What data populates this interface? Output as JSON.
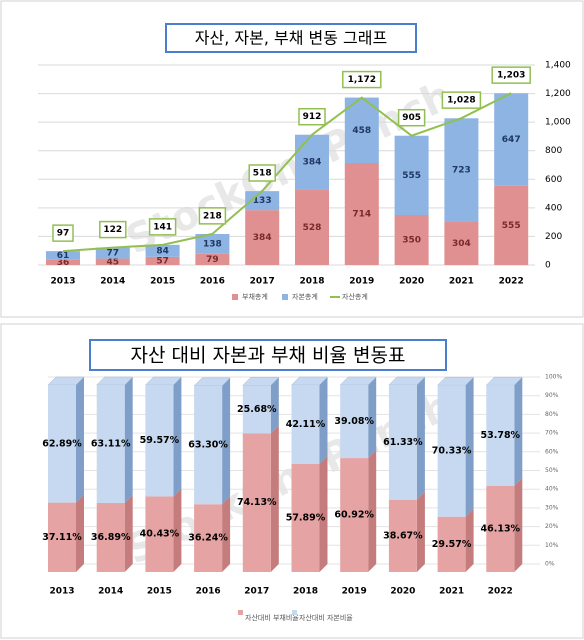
{
  "chart_data": [
    {
      "type": "combo",
      "title": "자산, 자본, 부채 변동 그래프",
      "watermark": "StockOnePunch",
      "categories": [
        "2013",
        "2014",
        "2015",
        "2016",
        "2017",
        "2018",
        "2019",
        "2020",
        "2021",
        "2022"
      ],
      "series": [
        {
          "name": "부채총계",
          "type": "bar",
          "color": "#e09090",
          "values": [
            36,
            45,
            57,
            79,
            384,
            528,
            714,
            350,
            304,
            555
          ]
        },
        {
          "name": "자본총계",
          "type": "bar",
          "color": "#8db4e2",
          "values": [
            61,
            77,
            84,
            138,
            133,
            384,
            458,
            555,
            723,
            647
          ]
        },
        {
          "name": "자산총계",
          "type": "line",
          "color": "#92c050",
          "values": [
            97,
            122,
            141,
            218,
            518,
            912,
            1172,
            905,
            1028,
            1203
          ],
          "value_labels": [
            "97",
            "122",
            "141",
            "218",
            "518",
            "912",
            "1,172",
            "905",
            "1,028",
            "1,203"
          ]
        }
      ],
      "ylim": [
        0,
        1400
      ],
      "yticks": [
        0,
        200,
        400,
        600,
        800,
        {
          "value": 1000,
          "label": "1,000"
        },
        {
          "value": 1200,
          "label": "1,200"
        },
        {
          "value": 1400,
          "label": "1,400"
        }
      ],
      "grid": true,
      "axis_side": "right",
      "legend": "bottom"
    },
    {
      "type": "stacked100-3d",
      "title": "자산 대비 자본과 부채 비율 변동표",
      "watermark": "StockOnePunch",
      "categories": [
        "2013",
        "2014",
        "2015",
        "2016",
        "2017",
        "2018",
        "2019",
        "2020",
        "2021",
        "2022"
      ],
      "series": [
        {
          "name": "자산대비 부채비율",
          "color": "#e6a3a3",
          "values": [
            37.11,
            36.89,
            40.43,
            36.24,
            74.13,
            57.89,
            60.92,
            38.67,
            29.57,
            46.13
          ],
          "value_labels": [
            "37.11%",
            "36.89%",
            "40.43%",
            "36.24%",
            "74.13%",
            "57.89%",
            "60.92%",
            "38.67%",
            "29.57%",
            "46.13%"
          ]
        },
        {
          "name": "자산대비 자본비율",
          "color": "#c6d9f0",
          "values": [
            62.89,
            63.11,
            59.57,
            63.3,
            25.68,
            42.11,
            39.08,
            61.33,
            70.33,
            53.78
          ],
          "value_labels": [
            "62.89%",
            "63.11%",
            "59.57%",
            "63.30%",
            "25.68%",
            "42.11%",
            "39.08%",
            "61.33%",
            "70.33%",
            "53.78%"
          ]
        }
      ],
      "ylim": [
        0,
        100
      ],
      "yticks": [
        {
          "value": 0,
          "label": "0%"
        },
        {
          "value": 10,
          "label": "10%"
        },
        {
          "value": 20,
          "label": "20%"
        },
        {
          "value": 30,
          "label": "30%"
        },
        {
          "value": 40,
          "label": "40%"
        },
        {
          "value": 50,
          "label": "50%"
        },
        {
          "value": 60,
          "label": "60%"
        },
        {
          "value": 70,
          "label": "70%"
        },
        {
          "value": 80,
          "label": "80%"
        },
        {
          "value": 90,
          "label": "90%"
        },
        {
          "value": 100,
          "label": "100%"
        }
      ],
      "grid": true,
      "axis_side": "right",
      "legend": "bottom"
    }
  ]
}
